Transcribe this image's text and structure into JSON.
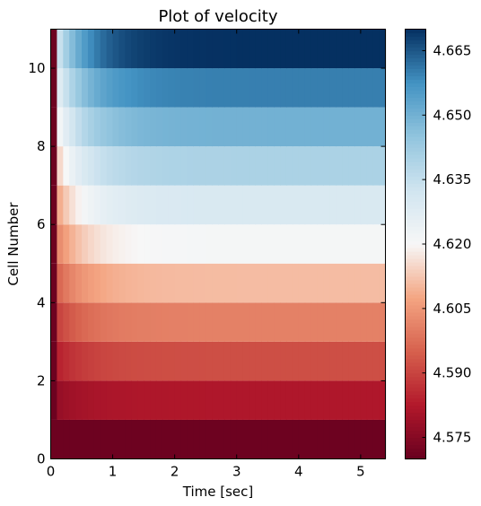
{
  "chart_data": {
    "type": "heatmap",
    "title": "Plot of velocity",
    "xlabel": "Time [sec]",
    "ylabel": "Cell Number",
    "xlim": [
      0,
      5.4
    ],
    "ylim": [
      0,
      11
    ],
    "x_ticks": [
      "0",
      "1",
      "2",
      "3",
      "4",
      "5"
    ],
    "y_ticks": [
      "0",
      "2",
      "4",
      "6",
      "8",
      "10"
    ],
    "colormap": "RdBu",
    "colorbar": {
      "range": [
        4.57,
        4.67
      ],
      "ticks": [
        "4.575",
        "4.590",
        "4.605",
        "4.620",
        "4.635",
        "4.650",
        "4.665"
      ],
      "tick_values": [
        4.575,
        4.59,
        4.605,
        4.62,
        4.635,
        4.65,
        4.665
      ]
    },
    "time_step": 0.1,
    "initial_value": 4.571,
    "rows": [
      {
        "cell": 0,
        "value": 4.571
      },
      {
        "cell": 1,
        "value": 4.582
      },
      {
        "cell": 2,
        "value": 4.592
      },
      {
        "cell": 3,
        "value": 4.601
      },
      {
        "cell": 4,
        "value": 4.611
      },
      {
        "cell": 5,
        "value": 4.621
      },
      {
        "cell": 6,
        "value": 4.63
      },
      {
        "cell": 7,
        "value": 4.64
      },
      {
        "cell": 8,
        "value": 4.65
      },
      {
        "cell": 9,
        "value": 4.66
      },
      {
        "cell": 10,
        "value": 4.67
      }
    ]
  }
}
